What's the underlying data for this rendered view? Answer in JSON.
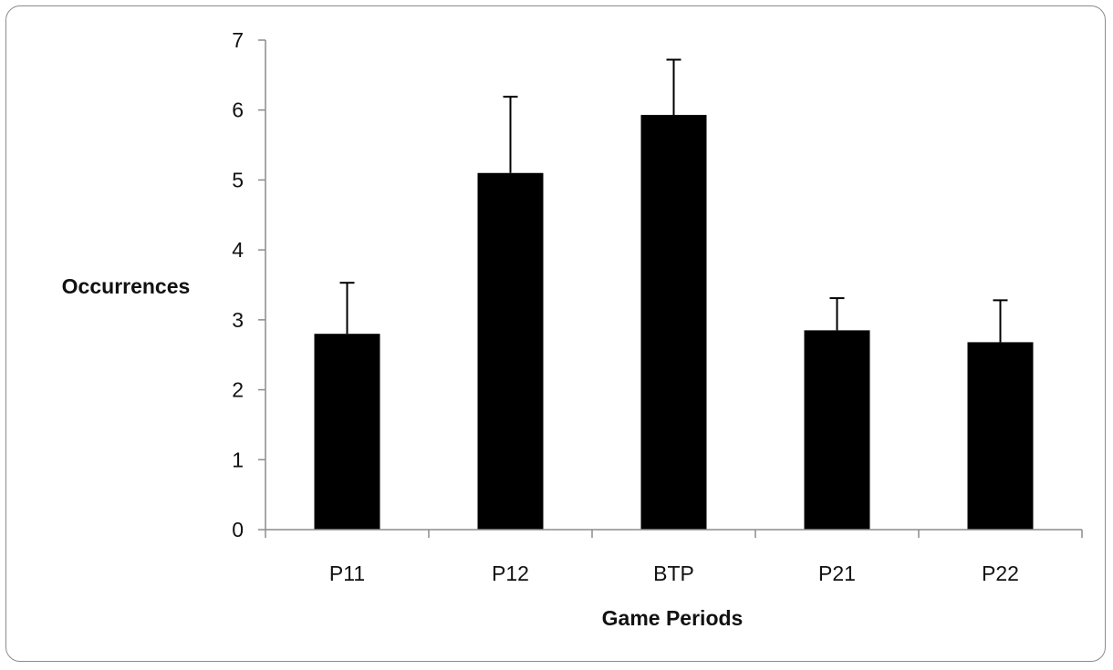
{
  "chart_data": {
    "type": "bar",
    "title": "",
    "xlabel": "Game Periods",
    "ylabel": "Occurrences",
    "categories": [
      "P11",
      "P12",
      "BTP",
      "P21",
      "P22"
    ],
    "values": [
      2.8,
      5.1,
      5.93,
      2.85,
      2.68
    ],
    "errors": [
      0.73,
      1.09,
      0.79,
      0.46,
      0.6
    ],
    "ylim": [
      0,
      7
    ],
    "yticks": [
      "0",
      "1",
      "2",
      "3",
      "4",
      "5",
      "6",
      "7"
    ],
    "grid": false,
    "legend": "none",
    "bar_color": "#000000"
  }
}
